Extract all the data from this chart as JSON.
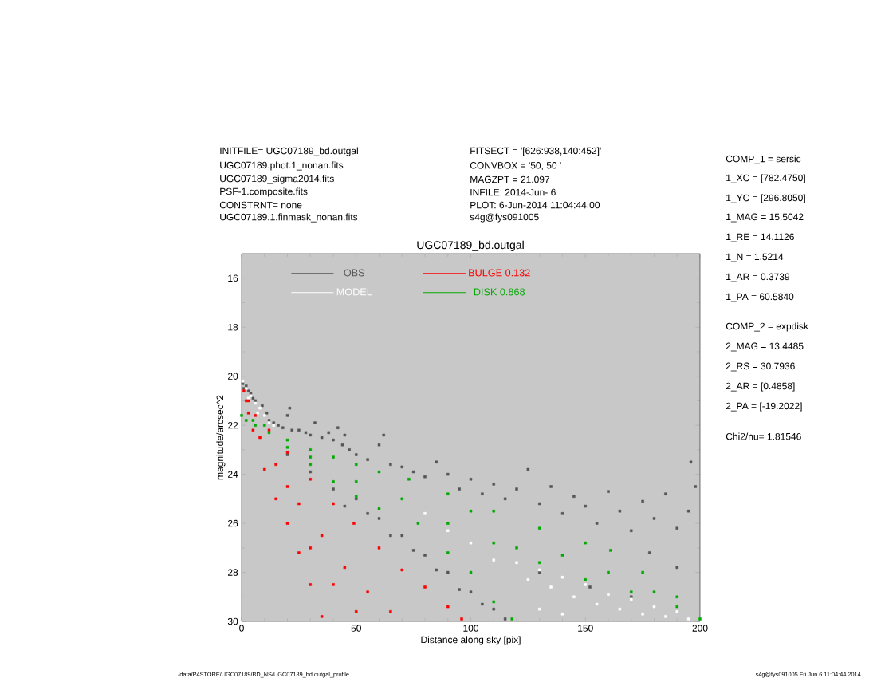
{
  "chart_data": {
    "type": "scatter",
    "title": "UGC07189_bd.outgal",
    "xlabel": "Distance along sky [pix]",
    "ylabel": "magnitude/arcsec^2",
    "xlim": [
      0,
      200
    ],
    "ylim": [
      30,
      15
    ],
    "xticks": [
      0,
      50,
      100,
      150,
      200
    ],
    "yticks": [
      16,
      18,
      20,
      22,
      24,
      26,
      28,
      30
    ],
    "legend": "top",
    "marker": "square",
    "series": [
      {
        "name": "OBS",
        "color": "#555555",
        "x": [
          0.5,
          1,
          2,
          3,
          4,
          5,
          6,
          9,
          11,
          12,
          14,
          16,
          18,
          20,
          21,
          22,
          25,
          28,
          30,
          32,
          35,
          38,
          40,
          42,
          44,
          45,
          47,
          50,
          55,
          60,
          62,
          65,
          70,
          75,
          80,
          85,
          90,
          95,
          100,
          105,
          110,
          115,
          120,
          125,
          130,
          135,
          140,
          145,
          150,
          155,
          160,
          165,
          170,
          175,
          180,
          185,
          190,
          195,
          198,
          196,
          178,
          190,
          20,
          30,
          40,
          50,
          60,
          70,
          80,
          90,
          100,
          110,
          45,
          55,
          65,
          75,
          85,
          95,
          105,
          115,
          130,
          152,
          170
        ],
        "values": [
          20.3,
          20.5,
          20.4,
          20.6,
          20.7,
          20.9,
          21.0,
          21.2,
          21.5,
          21.8,
          21.9,
          22.0,
          22.1,
          21.6,
          21.3,
          22.2,
          22.2,
          22.3,
          22.4,
          21.9,
          22.5,
          22.3,
          22.6,
          22.1,
          22.8,
          22.4,
          23.0,
          23.2,
          23.4,
          22.8,
          22.4,
          23.6,
          23.7,
          23.9,
          24.1,
          23.5,
          24.0,
          24.6,
          24.2,
          24.8,
          24.4,
          25.0,
          24.6,
          23.8,
          25.2,
          24.5,
          25.6,
          24.9,
          25.3,
          26.0,
          24.7,
          25.5,
          26.3,
          25.1,
          25.8,
          24.8,
          26.2,
          25.5,
          24.5,
          23.5,
          27.2,
          27.8,
          23.2,
          23.9,
          24.6,
          25.0,
          25.8,
          26.5,
          27.3,
          28.0,
          28.8,
          29.5,
          25.3,
          25.6,
          26.5,
          27.1,
          27.9,
          28.7,
          29.3,
          29.9,
          28.0,
          28.6,
          29.0
        ]
      },
      {
        "name": "MODEL",
        "color": "#ffffff",
        "x": [
          0.5,
          2,
          3,
          4,
          6,
          7,
          8,
          10,
          12,
          14,
          80,
          90,
          100,
          110,
          120,
          125,
          130,
          135,
          140,
          145,
          150,
          155,
          160,
          165,
          170,
          175,
          180,
          185,
          190,
          195,
          130,
          140
        ],
        "values": [
          20.2,
          20.5,
          20.9,
          20.8,
          21.1,
          21.5,
          21.3,
          21.6,
          21.9,
          22.0,
          25.6,
          26.3,
          26.8,
          27.5,
          27.6,
          28.3,
          27.9,
          28.6,
          28.2,
          29.0,
          28.5,
          29.3,
          28.9,
          29.5,
          29.1,
          29.7,
          29.4,
          29.8,
          29.6,
          29.9,
          29.5,
          29.7
        ]
      },
      {
        "name": "BULGE  0.132",
        "color": "#ff0000",
        "x": [
          1,
          2,
          3,
          5,
          10,
          15,
          20,
          25,
          30,
          35,
          3,
          6,
          12,
          20,
          30,
          40,
          49,
          60,
          70,
          80,
          90,
          96,
          8,
          15,
          25,
          35,
          45,
          55,
          65,
          30,
          40,
          50,
          20
        ],
        "values": [
          20.6,
          21.0,
          21.5,
          22.2,
          23.8,
          25.0,
          26.0,
          27.2,
          28.5,
          29.8,
          21.0,
          21.6,
          22.2,
          23.1,
          24.2,
          25.2,
          26.0,
          27.0,
          27.9,
          28.6,
          29.4,
          29.9,
          22.5,
          23.6,
          25.2,
          26.5,
          27.8,
          28.8,
          29.6,
          27.0,
          28.5,
          29.6,
          24.5
        ]
      },
      {
        "name": "DISK  0.868",
        "color": "#00aa00",
        "x": [
          0,
          5,
          10,
          20,
          30,
          40,
          50,
          60,
          73,
          90,
          110,
          130,
          150,
          161,
          175,
          190,
          200,
          2,
          6,
          12,
          20,
          30,
          40,
          50,
          60,
          77,
          90,
          100,
          110,
          118,
          30,
          50,
          70,
          90,
          110,
          130,
          150,
          170,
          190,
          100,
          120,
          140,
          160,
          180
        ],
        "values": [
          21.6,
          21.8,
          22.0,
          22.6,
          23.0,
          23.3,
          23.6,
          23.9,
          24.2,
          24.8,
          25.5,
          26.2,
          26.8,
          27.1,
          28.0,
          29.0,
          29.9,
          21.8,
          22.0,
          22.3,
          22.9,
          23.6,
          24.3,
          24.9,
          25.4,
          26.0,
          27.2,
          28.0,
          29.2,
          29.9,
          23.3,
          24.3,
          25.0,
          26.0,
          26.8,
          27.6,
          28.3,
          28.8,
          29.4,
          25.5,
          27.0,
          27.3,
          28.0,
          28.8
        ]
      }
    ],
    "annotations": [
      "INITFILE= UGC07189_bd.outgal",
      "UGC07189.phot.1_nonan.fits",
      "UGC07189_sigma2014.fits",
      "PSF-1.composite.fits",
      "CONSTRNT= none",
      "UGC07189.1.finmask_nonan.fits",
      "FITSECT = '[626:938,140:452]'",
      "CONVBOX = '50, 50  '",
      "MAGZPT =          21.097",
      "INFILE: 2014-Jun- 6",
      "PLOT:  6-Jun-2014 11:04:44.00",
      "s4g@fys091005",
      "COMP_1  = sersic",
      "1_XC    = [782.4750]",
      "1_YC    = [296.8050]",
      "1_MAG   = 15.5042",
      "1_RE    = 14.1126",
      "1_N     = 1.5214",
      "1_AR    = 0.3739",
      "1_PA    = 60.5840",
      "COMP_2  = expdisk",
      "2_MAG   = 13.4485",
      "2_RS    = 30.7936",
      "2_AR    = [0.4858]",
      "2_PA    = [-19.2022]",
      "Chi2/nu=      1.81546",
      "/data/P4STORE/UGC07189/BD_NS/UGC07189_bd.outgal_profile",
      "s4g@fys091005  Fri Jun  6 11:04:44 2014"
    ]
  }
}
